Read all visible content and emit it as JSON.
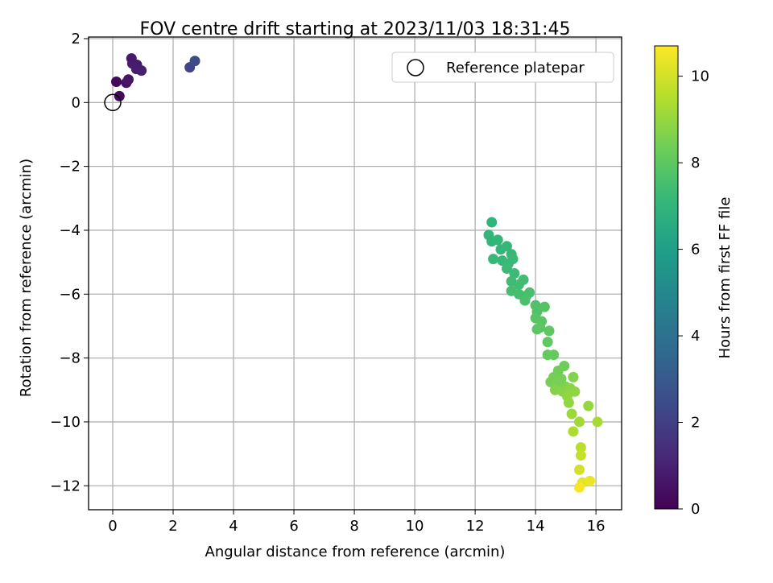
{
  "chart_data": {
    "type": "scatter",
    "title": "FOV centre drift starting at 2023/11/03 18:31:45",
    "xlabel": "Angular distance from reference (arcmin)",
    "ylabel": "Rotation from reference (arcmin)",
    "xlim": [
      -0.8,
      16.85
    ],
    "ylim": [
      -12.75,
      2.05
    ],
    "xticks": [
      0,
      2,
      4,
      6,
      8,
      10,
      12,
      14,
      16
    ],
    "yticks": [
      2,
      0,
      -2,
      -4,
      -6,
      -8,
      -10,
      -12
    ],
    "grid": true,
    "legend": {
      "position": "top-right",
      "entries": [
        "Reference platepar"
      ]
    },
    "reference_point": {
      "x": 0,
      "y": 0,
      "label": "Reference platepar"
    },
    "colorbar": {
      "label": "Hours from first FF file",
      "colormap": "viridis",
      "range": [
        0,
        10.7
      ],
      "ticks": [
        0,
        2,
        4,
        6,
        8,
        10
      ]
    },
    "points": [
      {
        "x": 0.12,
        "y": 0.65,
        "h": 0.2
      },
      {
        "x": 0.22,
        "y": 0.2,
        "h": 0.3
      },
      {
        "x": 0.45,
        "y": 0.62,
        "h": 0.5
      },
      {
        "x": 0.52,
        "y": 0.72,
        "h": 0.6
      },
      {
        "x": 0.62,
        "y": 1.38,
        "h": 0.7
      },
      {
        "x": 0.65,
        "y": 1.22,
        "h": 0.75
      },
      {
        "x": 0.8,
        "y": 1.18,
        "h": 0.8
      },
      {
        "x": 0.78,
        "y": 1.05,
        "h": 0.85
      },
      {
        "x": 0.95,
        "y": 1.0,
        "h": 0.9
      },
      {
        "x": 2.55,
        "y": 1.1,
        "h": 2.2
      },
      {
        "x": 2.72,
        "y": 1.3,
        "h": 2.4
      },
      {
        "x": 12.55,
        "y": -3.75,
        "h": 7.0
      },
      {
        "x": 12.45,
        "y": -4.15,
        "h": 7.0
      },
      {
        "x": 12.55,
        "y": -4.35,
        "h": 7.05
      },
      {
        "x": 12.75,
        "y": -4.3,
        "h": 7.1
      },
      {
        "x": 12.85,
        "y": -4.6,
        "h": 7.1
      },
      {
        "x": 13.05,
        "y": -4.5,
        "h": 7.15
      },
      {
        "x": 13.2,
        "y": -4.75,
        "h": 7.15
      },
      {
        "x": 12.6,
        "y": -4.9,
        "h": 7.2
      },
      {
        "x": 12.9,
        "y": -4.95,
        "h": 7.2
      },
      {
        "x": 13.1,
        "y": -5.05,
        "h": 7.25
      },
      {
        "x": 13.25,
        "y": -4.9,
        "h": 7.25
      },
      {
        "x": 13.05,
        "y": -5.2,
        "h": 7.3
      },
      {
        "x": 13.3,
        "y": -5.35,
        "h": 7.3
      },
      {
        "x": 13.2,
        "y": -5.6,
        "h": 7.35
      },
      {
        "x": 13.45,
        "y": -5.7,
        "h": 7.4
      },
      {
        "x": 13.6,
        "y": -5.55,
        "h": 7.4
      },
      {
        "x": 13.2,
        "y": -5.9,
        "h": 7.45
      },
      {
        "x": 13.45,
        "y": -6.0,
        "h": 7.5
      },
      {
        "x": 13.7,
        "y": -6.05,
        "h": 7.5
      },
      {
        "x": 13.8,
        "y": -5.95,
        "h": 7.55
      },
      {
        "x": 13.65,
        "y": -6.2,
        "h": 7.6
      },
      {
        "x": 14.0,
        "y": -6.35,
        "h": 7.7
      },
      {
        "x": 14.05,
        "y": -6.55,
        "h": 7.75
      },
      {
        "x": 14.3,
        "y": -6.4,
        "h": 7.8
      },
      {
        "x": 14.0,
        "y": -6.75,
        "h": 7.85
      },
      {
        "x": 14.2,
        "y": -6.85,
        "h": 7.9
      },
      {
        "x": 14.15,
        "y": -7.05,
        "h": 7.95
      },
      {
        "x": 14.05,
        "y": -7.1,
        "h": 7.95
      },
      {
        "x": 14.45,
        "y": -7.15,
        "h": 8.0
      },
      {
        "x": 14.4,
        "y": -7.5,
        "h": 8.05
      },
      {
        "x": 14.4,
        "y": -7.9,
        "h": 8.1
      },
      {
        "x": 14.6,
        "y": -7.9,
        "h": 8.15
      },
      {
        "x": 14.95,
        "y": -8.25,
        "h": 8.3
      },
      {
        "x": 14.75,
        "y": -8.4,
        "h": 8.35
      },
      {
        "x": 14.6,
        "y": -8.6,
        "h": 8.4
      },
      {
        "x": 14.5,
        "y": -8.75,
        "h": 8.45
      },
      {
        "x": 14.85,
        "y": -8.65,
        "h": 8.45
      },
      {
        "x": 14.7,
        "y": -8.8,
        "h": 8.5
      },
      {
        "x": 15.0,
        "y": -8.9,
        "h": 8.6
      },
      {
        "x": 15.25,
        "y": -8.6,
        "h": 8.65
      },
      {
        "x": 14.65,
        "y": -9.0,
        "h": 8.7
      },
      {
        "x": 14.9,
        "y": -9.05,
        "h": 8.75
      },
      {
        "x": 15.15,
        "y": -8.95,
        "h": 8.8
      },
      {
        "x": 15.3,
        "y": -9.05,
        "h": 8.85
      },
      {
        "x": 15.05,
        "y": -9.2,
        "h": 8.9
      },
      {
        "x": 15.1,
        "y": -9.4,
        "h": 8.95
      },
      {
        "x": 15.75,
        "y": -9.5,
        "h": 9.0
      },
      {
        "x": 15.2,
        "y": -9.75,
        "h": 9.1
      },
      {
        "x": 15.45,
        "y": -10.0,
        "h": 9.2
      },
      {
        "x": 16.05,
        "y": -10.0,
        "h": 9.3
      },
      {
        "x": 15.25,
        "y": -10.3,
        "h": 9.4
      },
      {
        "x": 15.5,
        "y": -10.8,
        "h": 9.6
      },
      {
        "x": 15.5,
        "y": -11.05,
        "h": 9.8
      },
      {
        "x": 15.45,
        "y": -11.5,
        "h": 10.0
      },
      {
        "x": 15.55,
        "y": -11.9,
        "h": 10.3
      },
      {
        "x": 15.8,
        "y": -11.85,
        "h": 10.4
      },
      {
        "x": 15.45,
        "y": -12.05,
        "h": 10.6
      }
    ]
  }
}
